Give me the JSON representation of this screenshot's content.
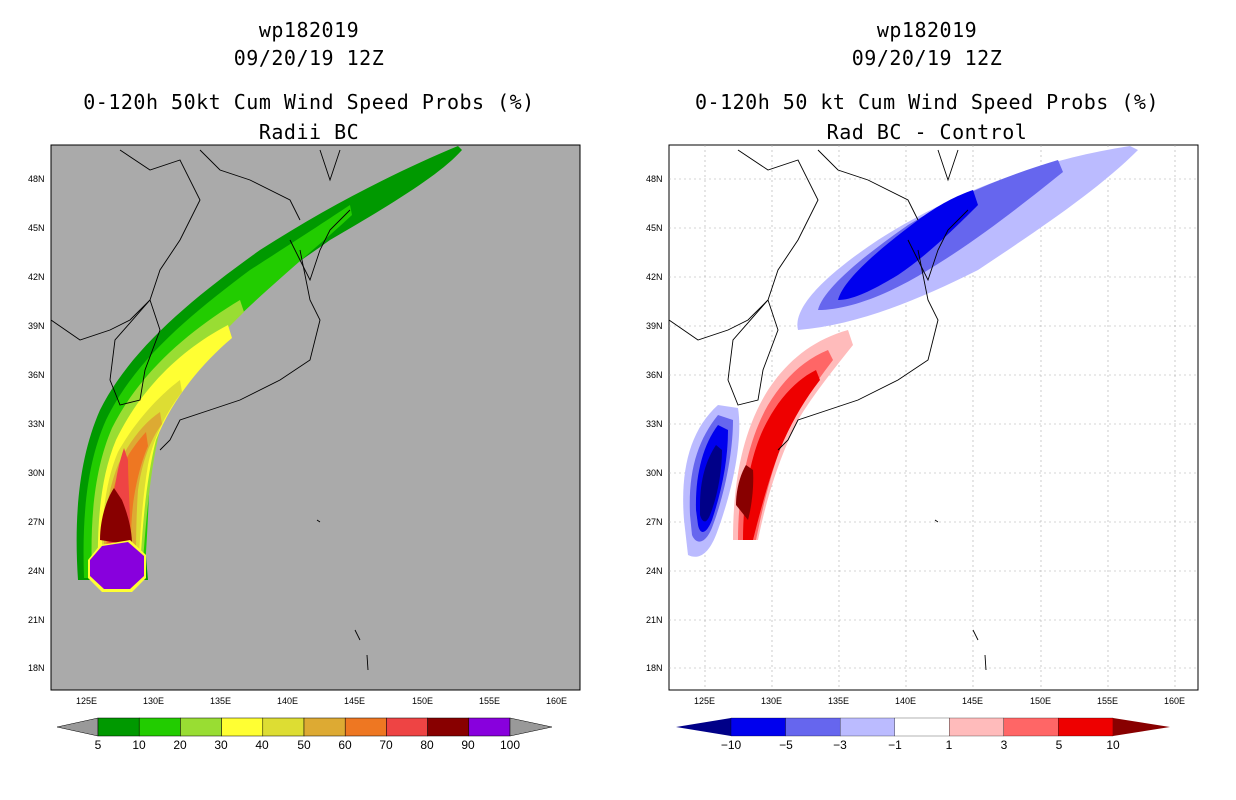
{
  "left": {
    "storm_id": "wp182019",
    "datetime": "09/20/19 12Z",
    "product": "0-120h 50kt Cum Wind Speed Probs (%)",
    "subtitle": "Radii BC",
    "lat_labels": [
      "48N",
      "45N",
      "42N",
      "39N",
      "36N",
      "33N",
      "30N",
      "27N",
      "24N",
      "21N",
      "18N"
    ],
    "lon_labels": [
      "125E",
      "130E",
      "135E",
      "140E",
      "145E",
      "150E",
      "155E",
      "160E"
    ],
    "colorbar_labels": [
      "5",
      "10",
      "20",
      "30",
      "40",
      "50",
      "60",
      "70",
      "80",
      "90",
      "100"
    ],
    "colorbar_colors": [
      "#009900",
      "#22cc00",
      "#99dd33",
      "#ffff33",
      "#dddd33",
      "#ddaa33",
      "#ee7722",
      "#ee4444",
      "#880000",
      "#8800dd"
    ],
    "background_color": "#aaaaaa"
  },
  "right": {
    "storm_id": "wp182019",
    "datetime": "09/20/19 12Z",
    "product": "0-120h 50 kt Cum Wind Speed Probs (%)",
    "subtitle": "Rad BC - Control",
    "lat_labels": [
      "48N",
      "45N",
      "42N",
      "39N",
      "36N",
      "33N",
      "30N",
      "27N",
      "24N",
      "21N",
      "18N"
    ],
    "lon_labels": [
      "125E",
      "130E",
      "135E",
      "140E",
      "145E",
      "150E",
      "155E",
      "160E"
    ],
    "colorbar_labels": [
      "−10",
      "−5",
      "−3",
      "−1",
      "1",
      "3",
      "5",
      "10"
    ],
    "colorbar_colors": [
      "#000088",
      "#0000ee",
      "#6666ee",
      "#bbbbff",
      "#ffffff",
      "#ffbbbb",
      "#ff6666",
      "#ee0000",
      "#880000"
    ]
  }
}
